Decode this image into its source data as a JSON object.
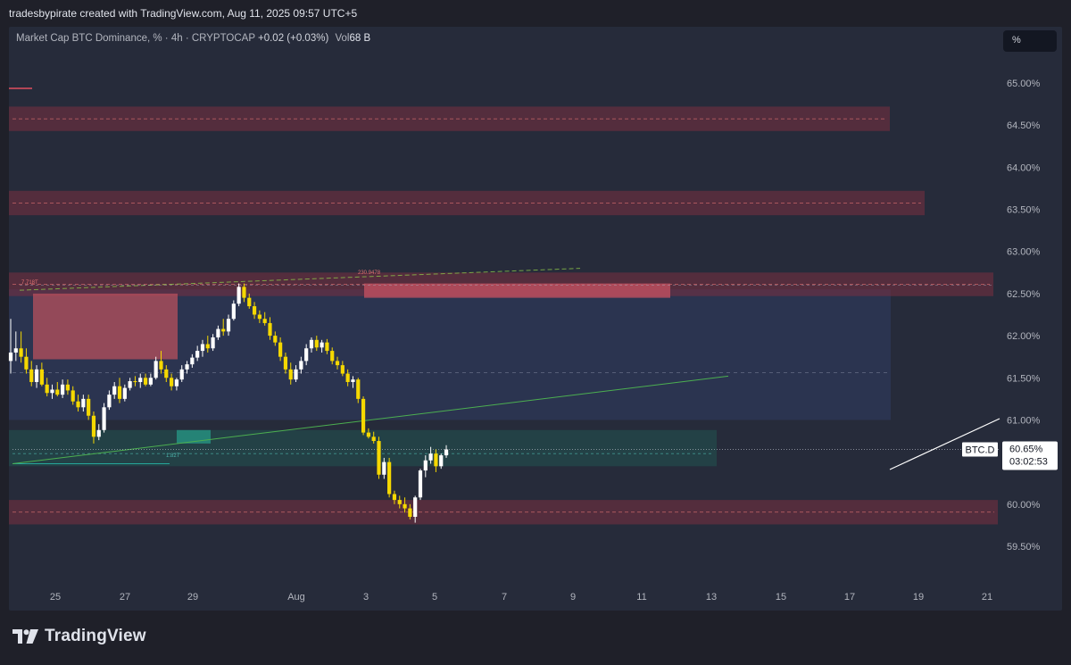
{
  "header": {
    "credit": "tradesbypirate created with TradingView.com, Aug 11, 2025 09:57 UTC+5"
  },
  "legend": {
    "title": "Market Cap BTC Dominance, % · 4h · CRYPTOCAP",
    "change": "+0.02 (+0.03%)",
    "vol_label": "Vol",
    "vol_value": "68 B"
  },
  "scale_button": "%",
  "price_tag": {
    "symbol": "BTC.D",
    "price": "60.65%",
    "countdown": "03:02:53"
  },
  "annotations": {
    "left_label": "7.718T",
    "top_label": "230.9478",
    "bottom_label": "1.82T"
  },
  "brand": "TradingView",
  "colors": {
    "up": "#ffffff",
    "down": "#f5d800",
    "resistance_zone": "#7a2f3f",
    "support_zone": "#1f6b5e",
    "range_box": "#2f3d63",
    "trendline": "#4caf50"
  },
  "chart_data": {
    "type": "candlestick",
    "x_tick_labels": [
      "25",
      "27",
      "29",
      "Aug",
      "3",
      "5",
      "7",
      "9",
      "11",
      "13",
      "15",
      "17",
      "19",
      "21"
    ],
    "y_ticks": [
      "65.00%",
      "64.50%",
      "64.00%",
      "63.50%",
      "63.00%",
      "62.50%",
      "62.00%",
      "61.50%",
      "61.00%",
      "60.00%",
      "59.50%"
    ],
    "ylim": [
      59.2,
      65.3
    ],
    "timeframe": "4h",
    "candles": [
      [
        61.7,
        62.2,
        61.55,
        61.8
      ],
      [
        61.8,
        62.05,
        61.7,
        61.85
      ],
      [
        61.85,
        62.05,
        61.68,
        61.75
      ],
      [
        61.75,
        61.85,
        61.55,
        61.6
      ],
      [
        61.6,
        61.7,
        61.4,
        61.45
      ],
      [
        61.45,
        61.65,
        61.38,
        61.6
      ],
      [
        61.6,
        61.68,
        61.4,
        61.42
      ],
      [
        61.42,
        61.5,
        61.28,
        61.32
      ],
      [
        61.32,
        61.42,
        61.25,
        61.36
      ],
      [
        61.36,
        61.45,
        61.28,
        61.3
      ],
      [
        61.3,
        61.48,
        61.26,
        61.42
      ],
      [
        61.42,
        61.48,
        61.3,
        61.35
      ],
      [
        61.35,
        61.4,
        61.18,
        61.22
      ],
      [
        61.22,
        61.3,
        61.1,
        61.15
      ],
      [
        61.15,
        61.3,
        61.1,
        61.25
      ],
      [
        61.25,
        61.3,
        61.0,
        61.05
      ],
      [
        61.05,
        61.1,
        60.72,
        60.8
      ],
      [
        60.8,
        60.95,
        60.76,
        60.88
      ],
      [
        60.88,
        61.2,
        60.85,
        61.15
      ],
      [
        61.15,
        61.35,
        61.12,
        61.3
      ],
      [
        61.3,
        61.45,
        61.25,
        61.4
      ],
      [
        61.4,
        61.5,
        61.2,
        61.25
      ],
      [
        61.25,
        61.42,
        61.22,
        61.38
      ],
      [
        61.38,
        61.5,
        61.35,
        61.46
      ],
      [
        61.46,
        61.52,
        61.4,
        61.45
      ],
      [
        61.45,
        61.55,
        61.38,
        61.5
      ],
      [
        61.5,
        61.55,
        61.4,
        61.42
      ],
      [
        61.42,
        61.55,
        61.4,
        61.5
      ],
      [
        61.5,
        61.75,
        61.48,
        61.7
      ],
      [
        61.7,
        61.82,
        61.55,
        61.6
      ],
      [
        61.6,
        61.65,
        61.45,
        61.5
      ],
      [
        61.5,
        61.55,
        61.35,
        61.4
      ],
      [
        61.4,
        61.5,
        61.35,
        61.48
      ],
      [
        61.48,
        61.65,
        61.45,
        61.6
      ],
      [
        61.6,
        61.7,
        61.55,
        61.66
      ],
      [
        61.66,
        61.78,
        61.62,
        61.74
      ],
      [
        61.74,
        61.88,
        61.7,
        61.82
      ],
      [
        61.82,
        61.95,
        61.75,
        61.9
      ],
      [
        61.9,
        62.0,
        61.8,
        61.85
      ],
      [
        61.85,
        62.02,
        61.82,
        61.98
      ],
      [
        61.98,
        62.12,
        61.95,
        62.08
      ],
      [
        62.08,
        62.2,
        62.0,
        62.05
      ],
      [
        62.05,
        62.25,
        62.0,
        62.2
      ],
      [
        62.2,
        62.42,
        62.18,
        62.38
      ],
      [
        62.38,
        62.62,
        62.35,
        62.58
      ],
      [
        62.58,
        62.62,
        62.4,
        62.45
      ],
      [
        62.45,
        62.5,
        62.32,
        62.35
      ],
      [
        62.35,
        62.4,
        62.2,
        62.25
      ],
      [
        62.25,
        62.3,
        62.15,
        62.2
      ],
      [
        62.2,
        62.28,
        62.12,
        62.15
      ],
      [
        62.15,
        62.22,
        61.95,
        62.0
      ],
      [
        62.0,
        62.05,
        61.88,
        61.92
      ],
      [
        61.92,
        61.98,
        61.7,
        61.75
      ],
      [
        61.75,
        61.8,
        61.55,
        61.6
      ],
      [
        61.6,
        61.68,
        61.42,
        61.48
      ],
      [
        61.48,
        61.65,
        61.45,
        61.6
      ],
      [
        61.6,
        61.75,
        61.55,
        61.7
      ],
      [
        61.7,
        61.9,
        61.65,
        61.85
      ],
      [
        61.85,
        61.98,
        61.8,
        61.95
      ],
      [
        61.95,
        62.0,
        61.82,
        61.86
      ],
      [
        61.86,
        61.95,
        61.8,
        61.92
      ],
      [
        61.92,
        61.96,
        61.78,
        61.82
      ],
      [
        61.82,
        61.86,
        61.66,
        61.7
      ],
      [
        61.7,
        61.75,
        61.6,
        61.65
      ],
      [
        61.65,
        61.7,
        61.52,
        61.55
      ],
      [
        61.55,
        61.6,
        61.4,
        61.45
      ],
      [
        61.45,
        61.52,
        61.38,
        61.48
      ],
      [
        61.48,
        61.5,
        61.2,
        61.25
      ],
      [
        61.25,
        61.28,
        60.82,
        60.85
      ],
      [
        60.85,
        60.9,
        60.78,
        60.8
      ],
      [
        60.8,
        60.86,
        60.72,
        60.75
      ],
      [
        60.75,
        60.8,
        60.3,
        60.35
      ],
      [
        60.35,
        60.55,
        60.3,
        60.5
      ],
      [
        60.5,
        60.55,
        60.08,
        60.12
      ],
      [
        60.12,
        60.16,
        60.0,
        60.05
      ],
      [
        60.05,
        60.1,
        59.95,
        60.0
      ],
      [
        60.0,
        60.08,
        59.9,
        59.95
      ],
      [
        59.95,
        60.0,
        59.82,
        59.85
      ],
      [
        59.85,
        60.1,
        59.78,
        60.08
      ],
      [
        60.08,
        60.42,
        60.05,
        60.4
      ],
      [
        60.4,
        60.58,
        60.32,
        60.52
      ],
      [
        60.52,
        60.68,
        60.48,
        60.6
      ],
      [
        60.6,
        60.65,
        60.38,
        60.45
      ],
      [
        60.45,
        60.6,
        60.42,
        60.58
      ],
      [
        60.58,
        60.7,
        60.55,
        60.65
      ]
    ]
  }
}
